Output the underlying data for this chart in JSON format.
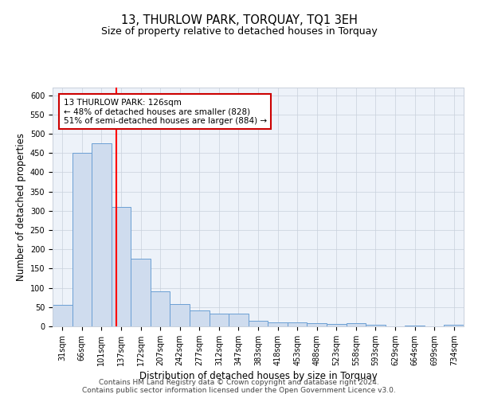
{
  "title": "13, THURLOW PARK, TORQUAY, TQ1 3EH",
  "subtitle": "Size of property relative to detached houses in Torquay",
  "xlabel": "Distribution of detached houses by size in Torquay",
  "ylabel": "Number of detached properties",
  "categories": [
    "31sqm",
    "66sqm",
    "101sqm",
    "137sqm",
    "172sqm",
    "207sqm",
    "242sqm",
    "277sqm",
    "312sqm",
    "347sqm",
    "383sqm",
    "418sqm",
    "453sqm",
    "488sqm",
    "523sqm",
    "558sqm",
    "593sqm",
    "629sqm",
    "664sqm",
    "699sqm",
    "734sqm"
  ],
  "values": [
    55,
    450,
    475,
    310,
    175,
    90,
    57,
    42,
    33,
    33,
    15,
    10,
    10,
    8,
    6,
    8,
    4,
    1,
    3,
    1,
    5
  ],
  "bar_color": "#cfdcee",
  "bar_edge_color": "#6b9fd4",
  "red_line_x": 2.74,
  "annotation_text": "13 THURLOW PARK: 126sqm\n← 48% of detached houses are smaller (828)\n51% of semi-detached houses are larger (884) →",
  "annotation_box_color": "#ffffff",
  "annotation_box_edge_color": "#cc0000",
  "ylim": [
    0,
    620
  ],
  "yticks": [
    0,
    50,
    100,
    150,
    200,
    250,
    300,
    350,
    400,
    450,
    500,
    550,
    600
  ],
  "footer1": "Contains HM Land Registry data © Crown copyright and database right 2024.",
  "footer2": "Contains public sector information licensed under the Open Government Licence v3.0.",
  "bg_color": "#edf2f9",
  "grid_color": "#c8d0dc",
  "title_fontsize": 10.5,
  "subtitle_fontsize": 9,
  "axis_label_fontsize": 8.5,
  "tick_fontsize": 7,
  "annotation_fontsize": 7.5,
  "footer_fontsize": 6.5
}
